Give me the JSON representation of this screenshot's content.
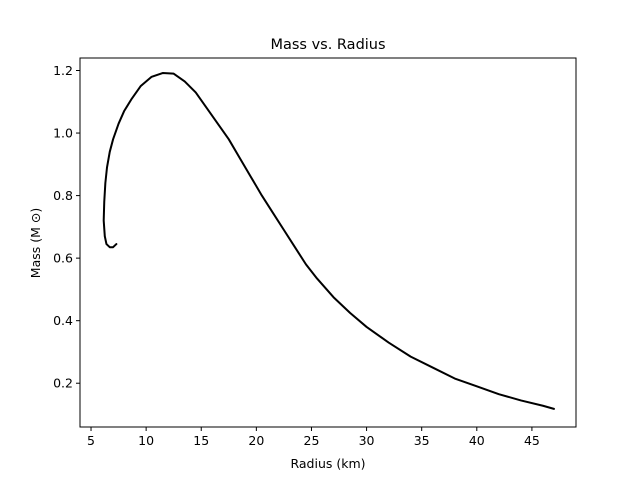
{
  "chart_data": {
    "type": "line",
    "title": "Mass vs. Radius",
    "xlabel": "Radius (km)",
    "ylabel": "Mass (M ⊙)",
    "xlim": [
      4.0,
      49.0
    ],
    "ylim": [
      0.06,
      1.24
    ],
    "xticks": [
      5,
      10,
      15,
      20,
      25,
      30,
      35,
      40,
      45
    ],
    "yticks": [
      0.2,
      0.4,
      0.6,
      0.8,
      1.0,
      1.2
    ],
    "xtick_labels": [
      "5",
      "10",
      "15",
      "20",
      "25",
      "30",
      "35",
      "40",
      "45"
    ],
    "ytick_labels": [
      "0.2",
      "0.4",
      "0.6",
      "0.8",
      "1.0",
      "1.2"
    ],
    "grid": false,
    "legend": "none",
    "series": [
      {
        "color": "#000000",
        "x": [
          7.3,
          7.0,
          6.7,
          6.4,
          6.25,
          6.15,
          6.2,
          6.3,
          6.45,
          6.7,
          7.0,
          7.5,
          8.0,
          8.7,
          9.5,
          10.5,
          11.5,
          12.5,
          13.5,
          14.5,
          15.5,
          16.5,
          17.5,
          18.5,
          19.5,
          20.5,
          21.5,
          22.5,
          23.5,
          24.5,
          25.5,
          27.0,
          28.5,
          30.0,
          32.0,
          34.0,
          36.0,
          38.0,
          40.0,
          42.0,
          44.0,
          46.0,
          47.0
        ],
        "y": [
          0.645,
          0.635,
          0.635,
          0.645,
          0.67,
          0.72,
          0.78,
          0.84,
          0.89,
          0.94,
          0.98,
          1.03,
          1.07,
          1.11,
          1.15,
          1.18,
          1.192,
          1.19,
          1.165,
          1.13,
          1.08,
          1.03,
          0.98,
          0.92,
          0.86,
          0.8,
          0.745,
          0.69,
          0.635,
          0.58,
          0.535,
          0.475,
          0.425,
          0.38,
          0.33,
          0.285,
          0.25,
          0.215,
          0.19,
          0.165,
          0.145,
          0.128,
          0.118
        ]
      }
    ]
  }
}
